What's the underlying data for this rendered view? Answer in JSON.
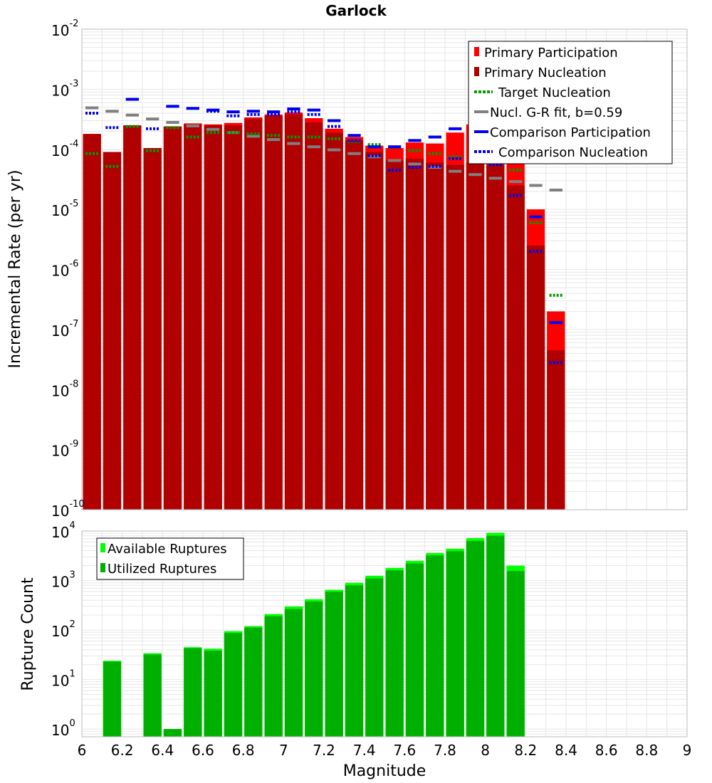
{
  "colors": {
    "primary_participation": "#ff0000",
    "primary_nucleation": "#b00000",
    "target_nucleation": "#009900",
    "gr_fit": "#808080",
    "comparison": "#0000ee",
    "available_ruptures": "#00ff00",
    "utilized_ruptures": "#00b000",
    "grid": "#e6e6e6",
    "frame": "#bbbbbb"
  },
  "chart_data": [
    {
      "type": "bar",
      "title": "Garlock",
      "xlabel": "",
      "ylabel": "Incremental Rate (per yr)",
      "xlim": [
        6,
        9
      ],
      "ylim": [
        1e-10,
        0.01
      ],
      "yscale": "log",
      "bin_width": 0.1,
      "grid": true,
      "legend_position": "top-right",
      "yticks": [
        {
          "base": "10",
          "exp": "-10"
        },
        {
          "base": "10",
          "exp": "-9"
        },
        {
          "base": "10",
          "exp": "-8"
        },
        {
          "base": "10",
          "exp": "-7"
        },
        {
          "base": "10",
          "exp": "-6"
        },
        {
          "base": "10",
          "exp": "-5"
        },
        {
          "base": "10",
          "exp": "-4"
        },
        {
          "base": "10",
          "exp": "-3"
        },
        {
          "base": "10",
          "exp": "-2"
        }
      ],
      "x": [
        6.05,
        6.15,
        6.25,
        6.35,
        6.45,
        6.55,
        6.65,
        6.75,
        6.85,
        6.95,
        7.05,
        7.15,
        7.25,
        7.35,
        7.45,
        7.55,
        7.65,
        7.75,
        7.85,
        7.95,
        8.05,
        8.15,
        8.25,
        8.35
      ],
      "series": [
        {
          "name": "Primary Participation",
          "style": "bar",
          "color": "#ff0000",
          "values": [
            0.00018,
            9e-05,
            0.00025,
            0.000105,
            0.00024,
            0.00027,
            0.00026,
            0.000275,
            0.00034,
            0.00038,
            0.00041,
            0.00033,
            0.00022,
            0.00016,
            0.000115,
            0.000105,
            0.00013,
            0.000125,
            0.00019,
            0.00026,
            0.00019,
            6.5e-05,
            1e-05,
            2e-07
          ]
        },
        {
          "name": "Primary Nucleation",
          "style": "bar",
          "color": "#b00000",
          "values": [
            0.00018,
            9e-05,
            0.00025,
            0.000105,
            0.00024,
            0.00026,
            0.00025,
            0.00025,
            0.00032,
            0.00036,
            0.00038,
            0.00028,
            0.00019,
            0.00014,
            9e-05,
            6.5e-05,
            7e-05,
            6e-05,
            5.5e-05,
            6e-05,
            5.5e-05,
            2.5e-05,
            2.5e-06,
            4.5e-08
          ]
        },
        {
          "name": "Target Nucleation",
          "style": "dotted",
          "color": "#009900",
          "values": [
            8.5e-05,
            5.2e-05,
            0.00024,
            9.5e-05,
            0.00023,
            0.00016,
            0.00019,
            0.00019,
            0.00018,
            0.00017,
            0.00016,
            0.00016,
            0.00015,
            0.000135,
            0.00012,
            0.00011,
            9.5e-05,
            8.5e-05,
            7.5e-05,
            6.5e-05,
            5.5e-05,
            4.5e-05,
            6e-06,
            3.7e-07
          ]
        },
        {
          "name": "Nucl. G-R fit, b=0.59",
          "style": "solid",
          "color": "#808080",
          "values": [
            0.00049,
            0.00043,
            0.00037,
            0.00032,
            0.00028,
            0.000245,
            0.000215,
            0.00019,
            0.000165,
            0.000145,
            0.000125,
            0.00011,
            9.8e-05,
            8.5e-05,
            7.5e-05,
            6.5e-05,
            5.7e-05,
            5e-05,
            4.3e-05,
            3.8e-05,
            3.3e-05,
            2.9e-05,
            2.5e-05,
            2.1e-05
          ]
        },
        {
          "name": "Comparison Participation",
          "style": "solid",
          "color": "#0000ee",
          "values": [
            null,
            null,
            0.00068,
            null,
            0.00052,
            0.00048,
            0.00045,
            0.00042,
            0.00043,
            0.00042,
            0.00047,
            0.00045,
            0.0003,
            0.00017,
            0.00011,
            0.00011,
            0.00014,
            0.00016,
            0.00022,
            0.00025,
            9e-05,
            7e-05,
            7.5e-06,
            1.3e-07
          ]
        },
        {
          "name": "Comparison Nucleation",
          "style": "dotted",
          "color": "#0000ee",
          "values": [
            0.0004,
            0.00023,
            null,
            0.00022,
            null,
            null,
            0.00043,
            0.00036,
            0.00038,
            0.00038,
            0.00042,
            0.00038,
            0.00024,
            0.00014,
            7.8e-05,
            4.5e-05,
            5e-05,
            5.2e-05,
            7e-05,
            9e-05,
            5.5e-05,
            1.7e-05,
            2e-06,
            2.8e-08
          ]
        }
      ]
    },
    {
      "type": "bar",
      "title": "",
      "xlabel": "Magnitude",
      "ylabel": "Rupture Count",
      "xlim": [
        6,
        9
      ],
      "ylim": [
        0.7,
        10000.0
      ],
      "yscale": "log",
      "bin_width": 0.1,
      "grid": true,
      "legend_position": "top-left",
      "xticks": [
        "6",
        "6.2",
        "6.4",
        "6.6",
        "6.8",
        "7",
        "7.2",
        "7.4",
        "7.6",
        "7.8",
        "8",
        "8.2",
        "8.4",
        "8.6",
        "8.8",
        "9"
      ],
      "yticks": [
        {
          "base": "10",
          "exp": "0"
        },
        {
          "base": "10",
          "exp": "1"
        },
        {
          "base": "10",
          "exp": "2"
        },
        {
          "base": "10",
          "exp": "3"
        },
        {
          "base": "10",
          "exp": "4"
        }
      ],
      "x": [
        6.15,
        6.35,
        6.45,
        6.55,
        6.65,
        6.75,
        6.85,
        6.95,
        7.05,
        7.15,
        7.25,
        7.35,
        7.45,
        7.55,
        7.65,
        7.75,
        7.85,
        7.95,
        8.05,
        8.15
      ],
      "series": [
        {
          "name": "Available Ruptures",
          "color": "#00ff00",
          "values": [
            24,
            34,
            1,
            45,
            42,
            95,
            120,
            210,
            300,
            420,
            650,
            900,
            1250,
            1800,
            2500,
            3600,
            4400,
            7200,
            9200,
            2000
          ]
        },
        {
          "name": "Utilized Ruptures",
          "color": "#00b000",
          "values": [
            23,
            32,
            1,
            43,
            38,
            87,
            112,
            190,
            265,
            375,
            590,
            800,
            1100,
            1600,
            2200,
            3200,
            3900,
            6300,
            8000,
            1550
          ]
        }
      ]
    }
  ]
}
